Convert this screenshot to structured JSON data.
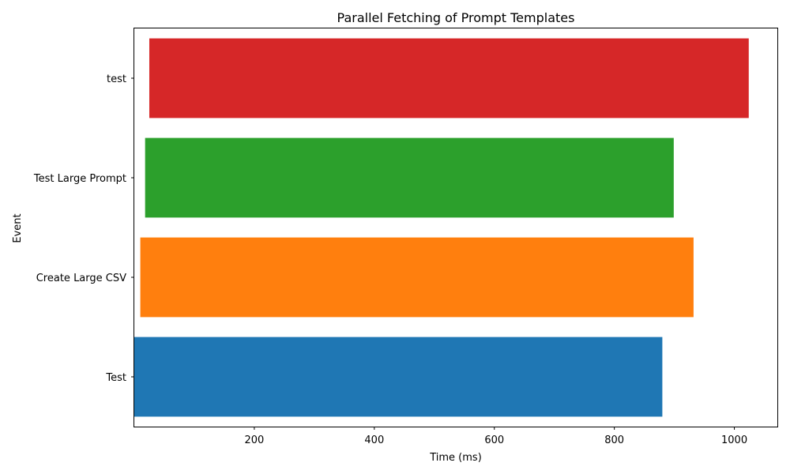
{
  "chart_data": {
    "type": "bar",
    "orientation": "horizontal",
    "title": "Parallel Fetching of Prompt Templates",
    "xlabel": "Time (ms)",
    "ylabel": "Event",
    "xlim": [
      0,
      1073
    ],
    "xticks": [
      200,
      400,
      600,
      800,
      1000
    ],
    "grid": false,
    "bars": [
      {
        "label": "Test",
        "start": 0,
        "end": 880,
        "color": "#1f77b4"
      },
      {
        "label": "Create Large CSV",
        "start": 10,
        "end": 932,
        "color": "#ff7f0e"
      },
      {
        "label": "Test Large Prompt",
        "start": 18,
        "end": 899,
        "color": "#2ca02c"
      },
      {
        "label": "test",
        "start": 25,
        "end": 1024,
        "color": "#d62728"
      }
    ]
  }
}
